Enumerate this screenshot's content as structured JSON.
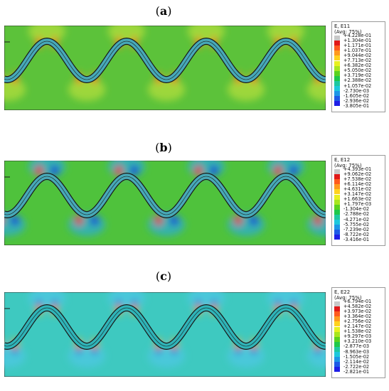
{
  "panels": [
    {
      "id": "a",
      "label_open": "(",
      "label_letter": "a",
      "label_close": ")",
      "legend_title": "E, E11",
      "legend_avg": "(Avg: 75%)",
      "ticks": [
        "+4.228e-01",
        "+1.304e-01",
        "+1.171e-01",
        "+1.037e-01",
        "+9.044e-02",
        "+7.713e-02",
        "+6.382e-02",
        "+5.050e-02",
        "+3.719e-02",
        "+2.388e-02",
        "+1.057e-02",
        "-2.730e-03",
        "-1.605e-02",
        "-2.936e-02",
        "-3.805e-01"
      ],
      "background_color": "#5cc23a",
      "hotspot_colors": [
        "#e8321e",
        "#f5a623"
      ],
      "cool_colors": [
        "#8fd23a",
        "#b8e03a"
      ]
    },
    {
      "id": "b",
      "label_open": "(",
      "label_letter": "b",
      "label_close": ")",
      "legend_title": "E, E12",
      "legend_avg": "(Avg: 75%)",
      "ticks": [
        "+4.393e-01",
        "+9.062e-02",
        "+7.538e-02",
        "+6.114e-02",
        "+4.631e-02",
        "+3.147e-02",
        "+1.663e-02",
        "+1.797e-03",
        "-1.304e-02",
        "-2.788e-02",
        "-4.271e-02",
        "-5.755e-02",
        "-7.239e-02",
        "-8.722e-02",
        "-3.416e-01"
      ],
      "background_color": "#4fc23c",
      "hotspot_colors": [
        "#e8321e",
        "#f5a623"
      ],
      "cool_colors": [
        "#1f3fd8",
        "#2ba9e0"
      ]
    },
    {
      "id": "c",
      "label_open": "(",
      "label_letter": "c",
      "label_close": ")",
      "legend_title": "E, E22",
      "legend_avg": "(Avg: 75%)",
      "ticks": [
        "+6.794e-01",
        "+4.582e-02",
        "+3.973e-02",
        "+3.364e-02",
        "+2.756e-02",
        "+2.147e-02",
        "+1.538e-02",
        "+9.297e-03",
        "+3.210e-03",
        "-2.877e-03",
        "-8.963e-03",
        "-1.505e-02",
        "-2.114e-02",
        "-2.722e-02",
        "-2.821e-01"
      ],
      "background_color": "#3ec9c0",
      "hotspot_colors": [
        "#e8321e",
        "#f5d020"
      ],
      "cool_colors": [
        "#1f3fd8",
        "#4ec7e6"
      ]
    }
  ],
  "colormap": [
    "#c8c8c8",
    "#e01818",
    "#ff5a1e",
    "#ff9a1e",
    "#ffd21e",
    "#e8f01e",
    "#a8e61e",
    "#5ad21e",
    "#1ec84a",
    "#1ec8a0",
    "#1ec8dc",
    "#1e96e6",
    "#1e5ae6",
    "#1e1ee6",
    "#2a2a2a"
  ]
}
